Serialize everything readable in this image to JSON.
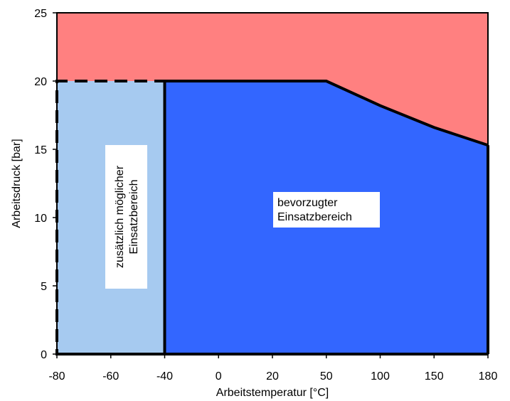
{
  "chart_data": {
    "type": "area",
    "title": "",
    "xlabel": "Arbeitstemperatur [°C]",
    "ylabel": "Arbeitsdruck [bar]",
    "x_ticks": [
      -80,
      -60,
      -40,
      0,
      20,
      50,
      100,
      150,
      180
    ],
    "y_ticks": [
      0,
      5,
      10,
      15,
      20,
      25
    ],
    "ylim": [
      0,
      25
    ],
    "grid": false,
    "regions": [
      {
        "label": "",
        "color": "#ff8080",
        "points": [
          [
            -80,
            25
          ],
          [
            180,
            25
          ],
          [
            180,
            15.3
          ],
          [
            150,
            16.6
          ],
          [
            100,
            18.2
          ],
          [
            50,
            20
          ],
          [
            -80,
            20
          ]
        ]
      },
      {
        "label": "zusätzlich möglicher Einsatzbereich",
        "lines": [
          "zusätzlich möglicher",
          "Einsatzbereich"
        ],
        "color": "#a6caf0",
        "border": "dashed",
        "points": [
          [
            -80,
            0
          ],
          [
            -40,
            0
          ],
          [
            -40,
            20
          ],
          [
            -80,
            20
          ]
        ]
      },
      {
        "label": "bevorzugter Einsatzbereich",
        "lines": [
          "bevorzugter",
          "Einsatzbereich"
        ],
        "color": "#3366ff",
        "border": "solid",
        "points": [
          [
            -40,
            0
          ],
          [
            180,
            0
          ],
          [
            180,
            15.3
          ],
          [
            150,
            16.6
          ],
          [
            100,
            18.2
          ],
          [
            50,
            20
          ],
          [
            -40,
            20
          ]
        ]
      }
    ],
    "boundary_line": [
      [
        -40,
        20
      ],
      [
        50,
        20
      ],
      [
        100,
        18.2
      ],
      [
        150,
        16.6
      ],
      [
        180,
        15.3
      ]
    ]
  }
}
